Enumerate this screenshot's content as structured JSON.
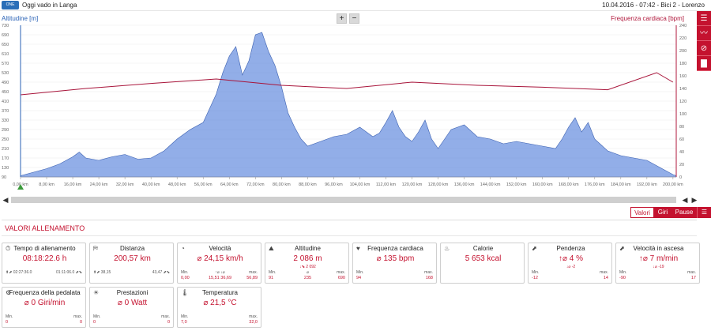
{
  "topbar": {
    "logo_text": "ONE",
    "app_title": "Oggi vado in Langa",
    "session_info": "10.04.2016 - 07:42 - Bici 2 - Lorenzo"
  },
  "chart": {
    "left_axis_title": "Altitudine [m]",
    "right_axis_title": "Frequenza cardiaca [bpm]",
    "zoom_in": "+",
    "zoom_out": "−",
    "colors": {
      "altitude": "#4a78d9",
      "heart": "#a8143a",
      "green": "#3b9a3b"
    }
  },
  "side_rail": {
    "buttons": [
      {
        "icon": "list-icon",
        "glyph": "☰"
      },
      {
        "icon": "line-chart-icon",
        "glyph": "〰"
      },
      {
        "icon": "no-filter-icon",
        "glyph": "⊘"
      },
      {
        "icon": "bar-chart-icon",
        "glyph": "▇"
      }
    ]
  },
  "chart_data": {
    "type": "area",
    "x_unit": "km",
    "xticks": [
      "0,00 km",
      "8,00 km",
      "16,00 km",
      "24,00 km",
      "32,00 km",
      "40,00 km",
      "48,00 km",
      "56,00 km",
      "64,00 km",
      "72,00 km",
      "80,00 km",
      "88,00 km",
      "96,00 km",
      "104,00 km",
      "112,00 km",
      "120,00 km",
      "128,00 km",
      "136,00 km",
      "144,00 km",
      "152,00 km",
      "160,00 km",
      "168,00 km",
      "176,00 km",
      "184,00 km",
      "192,00 km",
      "200,00 km"
    ],
    "y_left_ticks": [
      730,
      690,
      650,
      610,
      570,
      530,
      490,
      450,
      410,
      370,
      330,
      290,
      250,
      210,
      170,
      130,
      90
    ],
    "y_right_ticks": [
      240,
      220,
      200,
      180,
      160,
      140,
      120,
      100,
      80,
      60,
      40,
      20,
      0
    ],
    "ylim_left": [
      90,
      730
    ],
    "ylim_right": [
      0,
      240
    ],
    "xlim": [
      0,
      201
    ],
    "series": [
      {
        "name": "Altitudine",
        "x": [
          0,
          4,
          8,
          12,
          16,
          18,
          20,
          24,
          28,
          32,
          36,
          40,
          44,
          48,
          52,
          56,
          58,
          60,
          62,
          64,
          66,
          68,
          70,
          72,
          74,
          76,
          78,
          80,
          82,
          84,
          86,
          88,
          92,
          96,
          100,
          104,
          106,
          108,
          110,
          112,
          114,
          116,
          118,
          120,
          122,
          124,
          126,
          128,
          130,
          132,
          136,
          140,
          144,
          148,
          152,
          156,
          160,
          164,
          166,
          168,
          170,
          172,
          174,
          176,
          180,
          184,
          188,
          192,
          196,
          200,
          201
        ],
        "y": [
          95,
          110,
          125,
          145,
          175,
          195,
          170,
          160,
          175,
          185,
          165,
          170,
          200,
          250,
          290,
          320,
          380,
          440,
          530,
          600,
          640,
          520,
          580,
          690,
          700,
          620,
          560,
          470,
          360,
          300,
          250,
          220,
          240,
          260,
          270,
          300,
          280,
          260,
          275,
          320,
          370,
          300,
          260,
          240,
          280,
          330,
          250,
          210,
          250,
          290,
          310,
          260,
          250,
          230,
          240,
          230,
          220,
          210,
          250,
          300,
          340,
          280,
          320,
          250,
          200,
          180,
          170,
          160,
          130,
          100,
          95
        ]
      },
      {
        "name": "Frequenza cardiaca",
        "x": [
          0,
          20,
          40,
          60,
          80,
          100,
          120,
          140,
          160,
          180,
          195,
          200
        ],
        "y": [
          130,
          140,
          148,
          155,
          145,
          140,
          150,
          145,
          142,
          138,
          165,
          150
        ]
      }
    ]
  },
  "scrollbar": {
    "left_arrow": "◀",
    "right_arrow": "▶"
  },
  "tabs": {
    "items": [
      "Valori",
      "Giri",
      "Pause"
    ],
    "list_glyph": "☰"
  },
  "training": {
    "title": "VALORI ALLENAMENTO",
    "cards": [
      {
        "title": "Tempo di allenamento",
        "value": "08:18:22.6 h",
        "subs": "",
        "min_label": "⬆⬈ 02:27:36.0",
        "avg_label": "",
        "max_label": "01:11:06.0 ⬈⬊",
        "min_val": "",
        "avg_val": "",
        "max_val": ""
      },
      {
        "title": "Distanza",
        "value": "200,57 km",
        "subs": "",
        "min_label": "⬆⬈ 38,15",
        "avg_label": "",
        "max_label": "43,47 ⬈⬊",
        "min_val": "",
        "avg_val": "",
        "max_val": ""
      },
      {
        "title": "Velocità",
        "value": "⌀ 24,15 km/h",
        "subs": "",
        "min_label": "Min.",
        "avg_label": "↑⌀  ↓⌀",
        "max_label": "max.",
        "min_val": "0,00",
        "avg_val": "15,51  36,69",
        "max_val": "56,89"
      },
      {
        "title": "Altitudine",
        "value": "2 086 m",
        "subs": "↓⬊ 2 092",
        "min_label": "Min.",
        "avg_label": "⌀",
        "max_label": "max.",
        "min_val": "91",
        "avg_val": "235",
        "max_val": "690"
      },
      {
        "title": "Frequenza cardiaca",
        "value": "⌀ 135 bpm",
        "subs": "",
        "min_label": "Min.",
        "avg_label": "",
        "max_label": "max.",
        "min_val": "94",
        "avg_val": "",
        "max_val": "168"
      },
      {
        "title": "Calorie",
        "value": "5 653 kcal",
        "subs": "",
        "min_label": "",
        "avg_label": "",
        "max_label": "",
        "min_val": "",
        "avg_val": "",
        "max_val": ""
      },
      {
        "title": "Pendenza",
        "value": "↑⌀ 4 %",
        "subs": "↓⌀ -2",
        "min_label": "Min.",
        "avg_label": "",
        "max_label": "max.",
        "min_val": "-12",
        "avg_val": "",
        "max_val": "14"
      },
      {
        "title": "Velocità in ascesa",
        "value": "↑⌀ 7 m/min",
        "subs": "↓⌀ -19",
        "min_label": "Min.",
        "avg_label": "",
        "max_label": "max.",
        "min_val": "-90",
        "avg_val": "",
        "max_val": "17"
      },
      {
        "title": "Frequenza della pedalata",
        "value": "⌀ 0 Giri/min",
        "subs": "",
        "min_label": "Min.",
        "avg_label": "",
        "max_label": "max.",
        "min_val": "0",
        "avg_val": "",
        "max_val": "0"
      },
      {
        "title": "Prestazioni",
        "value": "⌀ 0 Watt",
        "subs": "",
        "min_label": "Min.",
        "avg_label": "",
        "max_label": "max.",
        "min_val": "0",
        "avg_val": "",
        "max_val": "0"
      },
      {
        "title": "Temperatura",
        "value": "⌀ 21,5 °C",
        "subs": "",
        "min_label": "Min.",
        "avg_label": "",
        "max_label": "max.",
        "min_val": "7,0",
        "avg_val": "",
        "max_val": "32,0"
      }
    ],
    "icons": [
      "clock-icon",
      "signpost-icon",
      "speedometer-icon",
      "mountain-icon",
      "heart-icon",
      "flame-icon",
      "slope-icon",
      "ascent-icon",
      "pedal-icon",
      "power-icon",
      "thermometer-icon"
    ],
    "icon_glyphs": [
      "⏱",
      "⛿",
      "◔",
      "⛰",
      "♥",
      "♨",
      "⬈",
      "⬈",
      "⚙",
      "☀",
      "🌡"
    ]
  }
}
